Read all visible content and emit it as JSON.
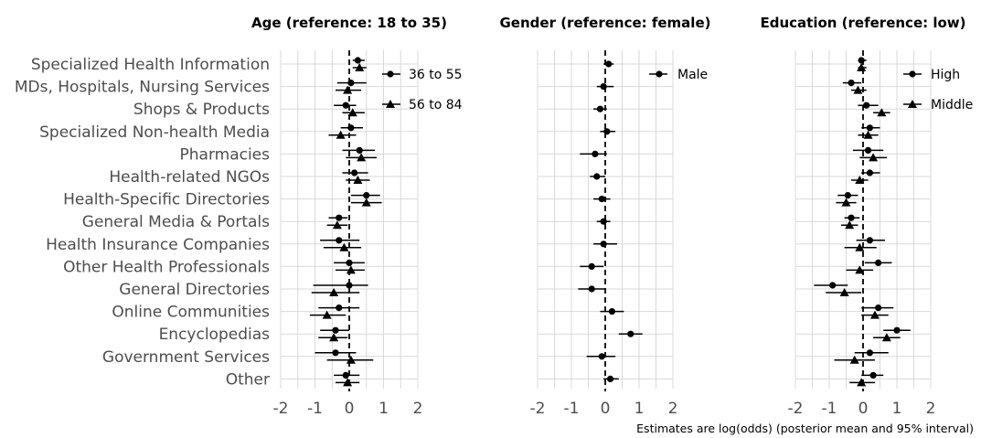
{
  "caption": "Estimates are log(odds) (posterior mean and 95% interval)",
  "colors": {
    "grid": "#d9d9d9",
    "text": "#4d4d4d",
    "mark": "#000000"
  },
  "chart_data": {
    "type": "forest",
    "categories": [
      "Specialized Health Information",
      "MDs, Hospitals, Nursing Services",
      "Shops & Products",
      "Specialized Non-health Media",
      "Pharmacies",
      "Health-related NGOs",
      "Health-Specific Directories",
      "General Media & Portals",
      "Health Insurance Companies",
      "Other Health Professionals",
      "General Directories",
      "Online Communities",
      "Encyclopedias",
      "Government Services",
      "Other"
    ],
    "xlim": [
      -2,
      2
    ],
    "xticks": [
      -2,
      -1,
      0,
      1,
      2
    ],
    "tick_labels": [
      "-2",
      "-1",
      "0",
      "1",
      "2"
    ],
    "reference_line": 0,
    "panels": [
      {
        "title": "Age (reference: 18 to 35)",
        "series": [
          {
            "name": "36 to 55",
            "marker": "circle",
            "mean": [
              0.25,
              0.05,
              -0.1,
              0.05,
              0.3,
              0.15,
              0.5,
              -0.3,
              -0.3,
              0.0,
              0.0,
              -0.3,
              -0.4,
              -0.4,
              -0.1
            ],
            "lower": [
              0.1,
              -0.35,
              -0.45,
              -0.25,
              -0.2,
              -0.2,
              0.05,
              -0.6,
              -0.85,
              -0.45,
              -1.05,
              -0.9,
              -0.85,
              -1.0,
              -0.45
            ],
            "upper": [
              0.45,
              0.5,
              0.2,
              0.4,
              0.75,
              0.55,
              0.9,
              -0.05,
              0.3,
              0.45,
              0.55,
              0.3,
              0.0,
              0.2,
              0.3
            ]
          },
          {
            "name": "56 to 84",
            "marker": "triangle",
            "mean": [
              0.3,
              -0.05,
              0.1,
              -0.25,
              0.35,
              0.25,
              0.5,
              -0.35,
              -0.15,
              0.05,
              -0.45,
              -0.65,
              -0.45,
              0.05,
              -0.05
            ],
            "lower": [
              0.1,
              -0.4,
              -0.2,
              -0.6,
              -0.1,
              -0.1,
              0.05,
              -0.65,
              -0.75,
              -0.4,
              -1.1,
              -1.15,
              -0.9,
              -0.65,
              -0.4
            ],
            "upper": [
              0.5,
              0.35,
              0.45,
              0.2,
              0.8,
              0.6,
              0.95,
              -0.05,
              0.35,
              0.45,
              0.3,
              -0.1,
              -0.05,
              0.7,
              0.3
            ]
          }
        ]
      },
      {
        "title": "Gender (reference: female)",
        "series": [
          {
            "name": "Male",
            "marker": "circle",
            "mean": [
              0.1,
              -0.05,
              -0.15,
              0.05,
              -0.3,
              -0.25,
              -0.1,
              -0.05,
              -0.05,
              -0.4,
              -0.4,
              0.2,
              0.75,
              -0.1,
              0.15
            ],
            "lower": [
              -0.05,
              -0.25,
              -0.35,
              -0.15,
              -0.75,
              -0.45,
              -0.35,
              -0.25,
              -0.35,
              -0.75,
              -0.8,
              -0.15,
              0.4,
              -0.55,
              -0.05
            ],
            "upper": [
              0.25,
              0.25,
              0.05,
              0.3,
              0.05,
              0.0,
              0.15,
              0.15,
              0.35,
              -0.05,
              0.0,
              0.55,
              1.1,
              0.3,
              0.4
            ]
          }
        ]
      },
      {
        "title": "Education (reference: low)",
        "series": [
          {
            "name": "High",
            "marker": "circle",
            "mean": [
              -0.05,
              -0.35,
              0.1,
              0.2,
              0.15,
              0.2,
              -0.45,
              -0.35,
              0.2,
              0.45,
              -0.9,
              0.45,
              1.0,
              0.2,
              0.3
            ],
            "lower": [
              -0.15,
              -0.6,
              -0.15,
              -0.05,
              -0.3,
              -0.05,
              -0.75,
              -0.55,
              -0.2,
              0.05,
              -1.45,
              -0.05,
              0.6,
              -0.25,
              -0.05
            ],
            "upper": [
              0.1,
              -0.05,
              0.45,
              0.5,
              0.6,
              0.5,
              -0.15,
              -0.1,
              0.65,
              0.85,
              -0.45,
              0.9,
              1.4,
              0.75,
              0.6
            ]
          },
          {
            "name": "Middle",
            "marker": "triangle",
            "mean": [
              -0.05,
              -0.15,
              0.55,
              0.15,
              0.3,
              -0.1,
              -0.5,
              -0.4,
              -0.1,
              -0.1,
              -0.55,
              0.35,
              0.7,
              -0.25,
              -0.05
            ],
            "lower": [
              -0.15,
              -0.35,
              0.3,
              -0.15,
              -0.1,
              -0.35,
              -0.8,
              -0.65,
              -0.55,
              -0.5,
              -1.1,
              -0.05,
              0.3,
              -0.85,
              -0.4
            ],
            "upper": [
              0.1,
              0.1,
              0.8,
              0.45,
              0.7,
              0.15,
              -0.2,
              -0.15,
              0.4,
              0.3,
              -0.05,
              0.75,
              1.1,
              0.35,
              0.35
            ]
          }
        ]
      }
    ]
  }
}
